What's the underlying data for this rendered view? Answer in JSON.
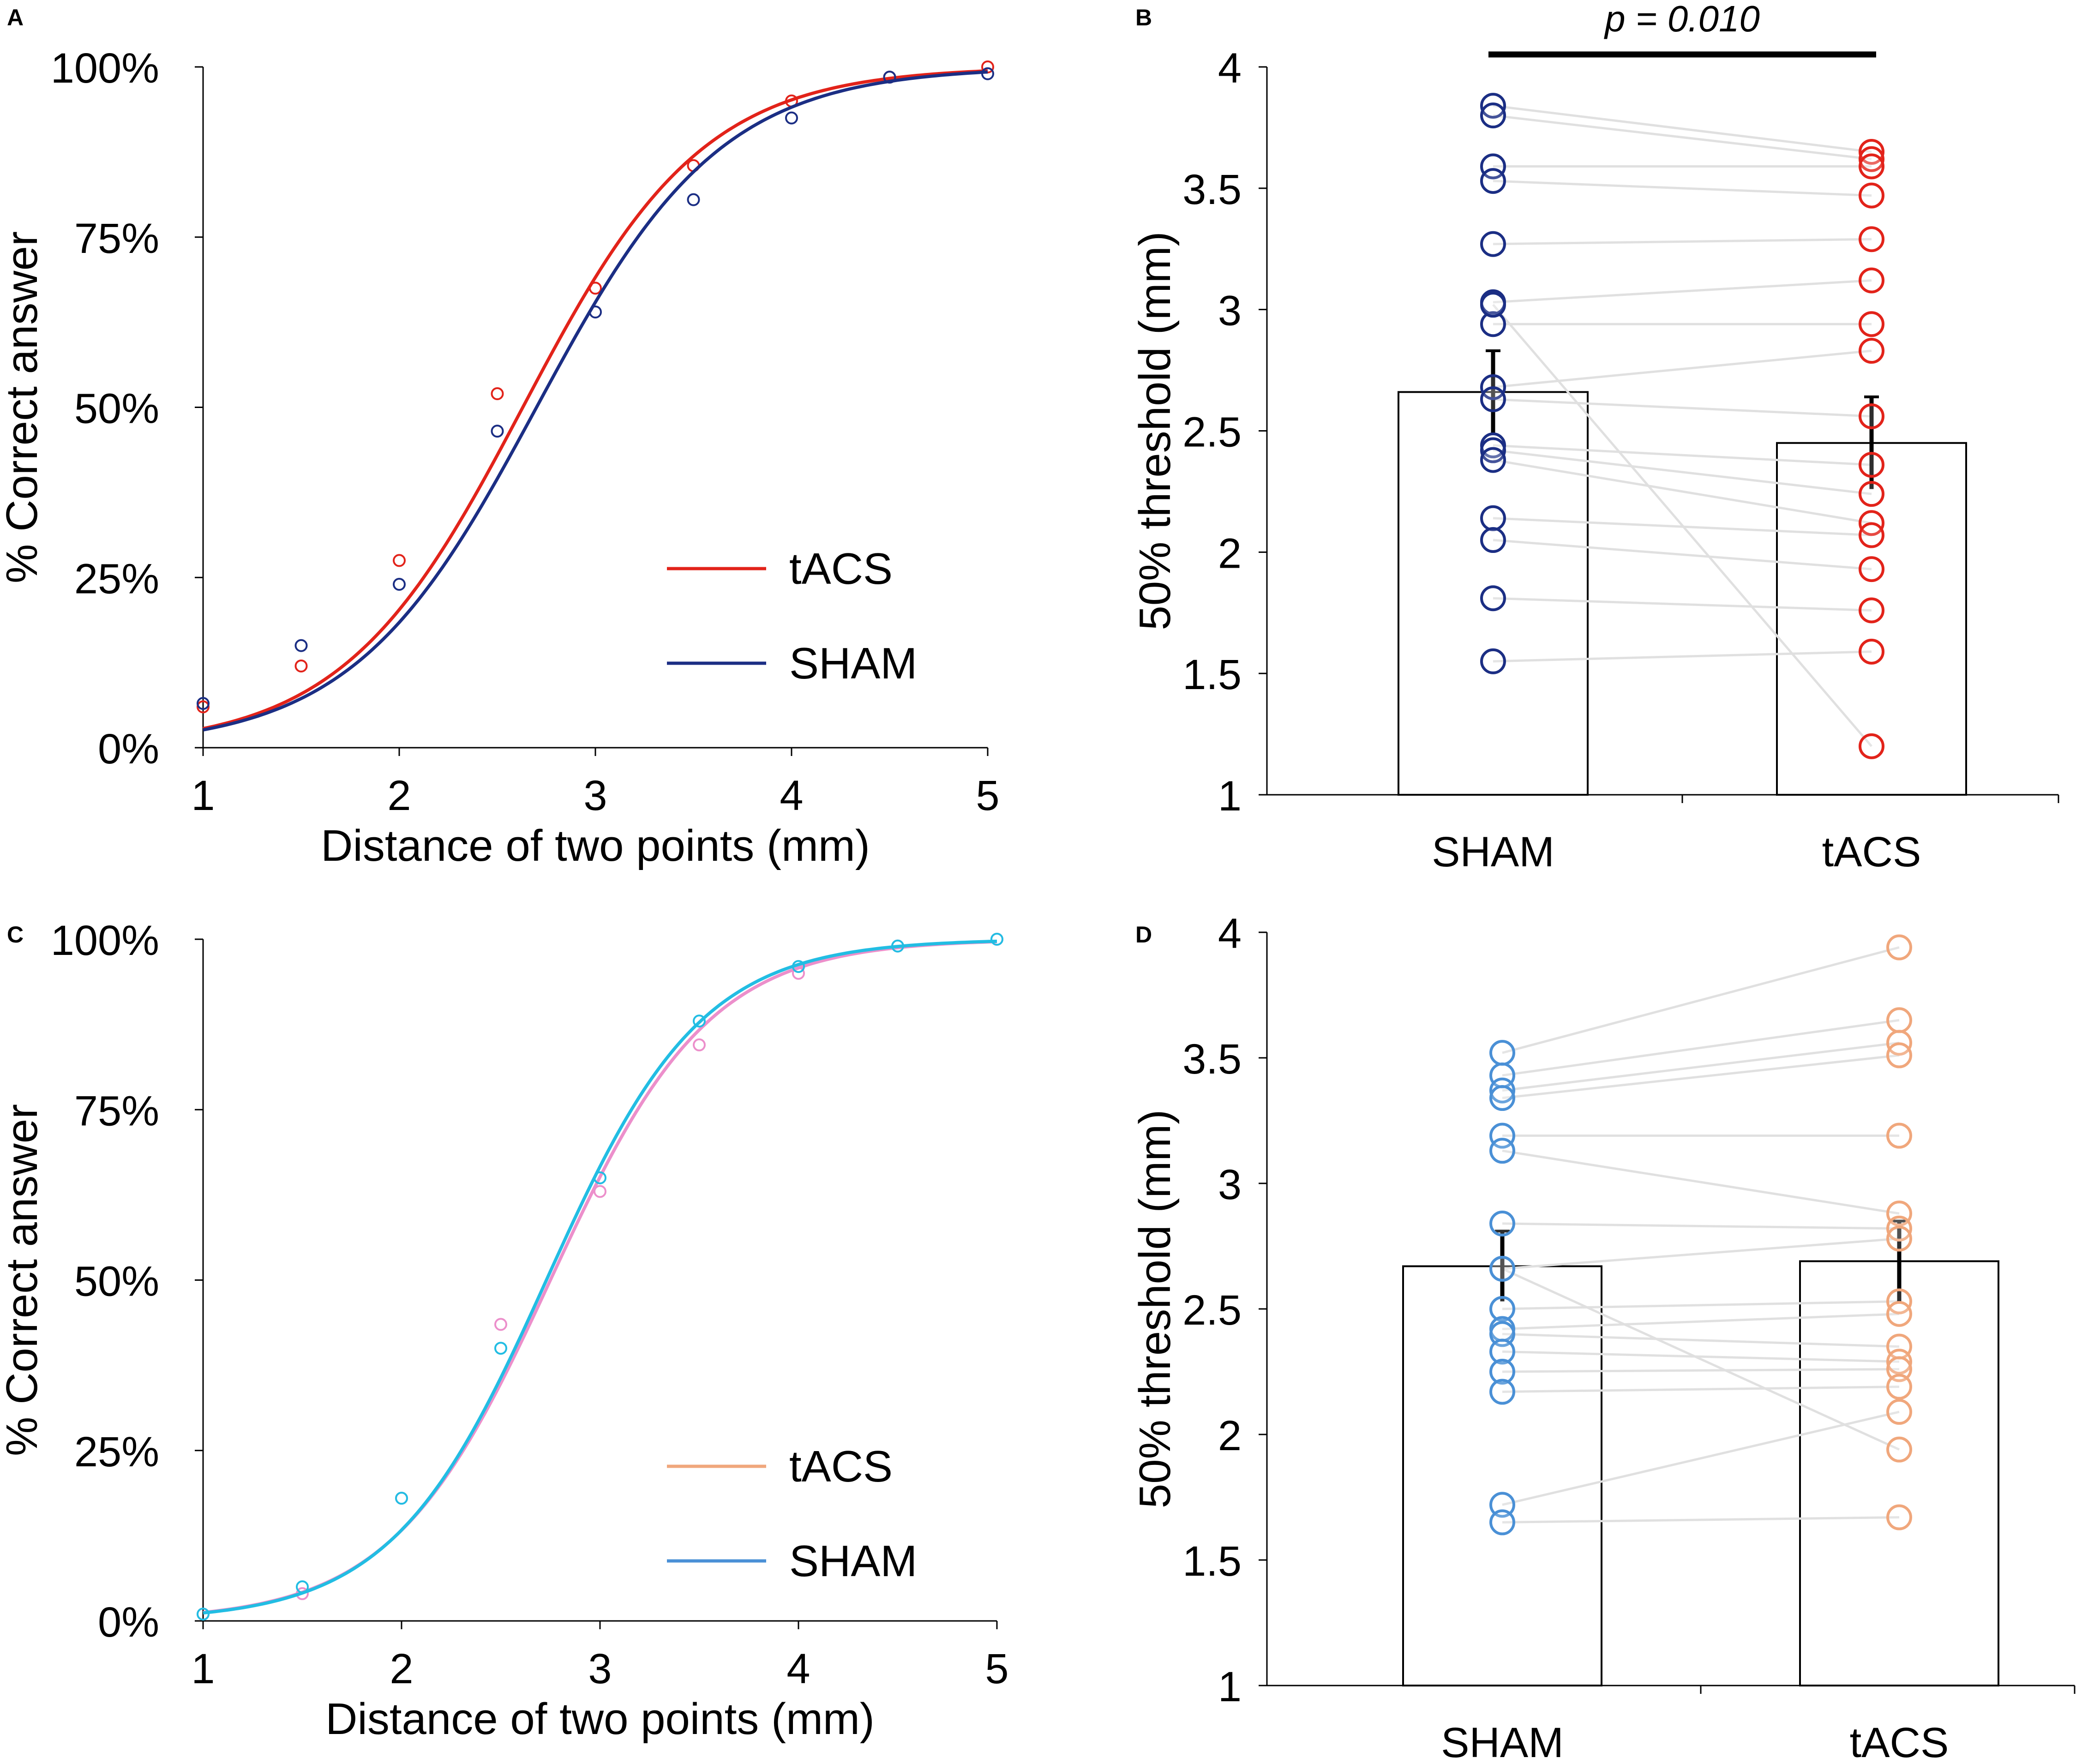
{
  "chart_data": [
    {
      "panel": "A",
      "type": "line",
      "title": "",
      "xlabel": "Distance of two points (mm)",
      "ylabel": "% Correct answer",
      "xlim": [
        1,
        5
      ],
      "ylim": [
        0,
        100
      ],
      "xticks": [
        1,
        2,
        3,
        4,
        5
      ],
      "yticks": [
        0,
        25,
        50,
        75,
        100
      ],
      "ytick_labels": [
        "0%",
        "25%",
        "50%",
        "75%",
        "100%"
      ],
      "legend_position": "bottom-right",
      "series": [
        {
          "name": "tACS",
          "color": "#e2231a",
          "fit": {
            "mu": 2.63,
            "s": 0.46
          },
          "points": [
            [
              1,
              6
            ],
            [
              1.5,
              12
            ],
            [
              2,
              27.5
            ],
            [
              2.5,
              52
            ],
            [
              3,
              67.5
            ],
            [
              3.5,
              85.5
            ],
            [
              4,
              95
            ],
            [
              4.5,
              98.5
            ],
            [
              5,
              100
            ]
          ]
        },
        {
          "name": "SHAM",
          "color": "#1b2e84",
          "fit": {
            "mu": 2.7,
            "s": 0.47
          },
          "points": [
            [
              1,
              6.5
            ],
            [
              1.5,
              15
            ],
            [
              2,
              24
            ],
            [
              2.5,
              46.5
            ],
            [
              3,
              64
            ],
            [
              3.5,
              80.5
            ],
            [
              4,
              92.5
            ],
            [
              4.5,
              98.5
            ],
            [
              5,
              99
            ]
          ]
        }
      ]
    },
    {
      "panel": "B",
      "type": "bar",
      "title": "",
      "xlabel": "",
      "ylabel": "50% threshold (mm)",
      "ylim": [
        1,
        4
      ],
      "yticks": [
        1,
        1.5,
        2,
        2.5,
        3,
        3.5,
        4
      ],
      "ytick_labels": [
        "1",
        "1.5",
        "2",
        "2.5",
        "3",
        "3.5",
        "4"
      ],
      "categories": [
        "SHAM",
        "tACS"
      ],
      "means": [
        2.66,
        2.45
      ],
      "errors": [
        0.17,
        0.19
      ],
      "dot_colors": [
        "#1b2e84",
        "#e2231a"
      ],
      "significance": {
        "label": "p = 0.010",
        "between": [
          "SHAM",
          "tACS"
        ]
      },
      "paired": [
        [
          3.84,
          3.65
        ],
        [
          3.8,
          3.62
        ],
        [
          3.59,
          3.59
        ],
        [
          3.53,
          3.47
        ],
        [
          3.27,
          3.29
        ],
        [
          3.03,
          3.12
        ],
        [
          2.94,
          2.94
        ],
        [
          2.68,
          2.83
        ],
        [
          2.63,
          2.56
        ],
        [
          2.44,
          2.36
        ],
        [
          2.42,
          2.24
        ],
        [
          2.38,
          2.12
        ],
        [
          2.14,
          2.07
        ],
        [
          2.05,
          1.93
        ],
        [
          1.81,
          1.76
        ],
        [
          1.55,
          1.59
        ],
        [
          3.02,
          1.2
        ]
      ]
    },
    {
      "panel": "C",
      "type": "line",
      "title": "",
      "xlabel": "Distance of two points (mm)",
      "ylabel": "% Correct answer",
      "xlim": [
        1,
        5
      ],
      "ylim": [
        0,
        100
      ],
      "xticks": [
        1,
        2,
        3,
        4,
        5
      ],
      "yticks": [
        0,
        25,
        50,
        75,
        100
      ],
      "ytick_labels": [
        "0%",
        "25%",
        "50%",
        "75%",
        "100%"
      ],
      "legend_position": "bottom-right",
      "series": [
        {
          "name": "tACS",
          "color": "#f0a77c",
          "line_color": "#ec8fcb",
          "fit": {
            "mu": 2.75,
            "s": 0.4
          },
          "points": [
            [
              1,
              1
            ],
            [
              1.5,
              4
            ],
            [
              2,
              18
            ],
            [
              2.5,
              43.5
            ],
            [
              3,
              63
            ],
            [
              3.5,
              84.5
            ],
            [
              4,
              95
            ],
            [
              4.5,
              99
            ],
            [
              5,
              100
            ]
          ]
        },
        {
          "name": "SHAM",
          "color": "#4a90d6",
          "line_color": "#22bde3",
          "fit": {
            "mu": 2.73,
            "s": 0.39
          },
          "points": [
            [
              1,
              1
            ],
            [
              1.5,
              5
            ],
            [
              2,
              18
            ],
            [
              2.5,
              40
            ],
            [
              3,
              65
            ],
            [
              3.5,
              88
            ],
            [
              4,
              96
            ],
            [
              4.5,
              99
            ],
            [
              5,
              100
            ]
          ]
        }
      ]
    },
    {
      "panel": "D",
      "type": "bar",
      "title": "",
      "xlabel": "",
      "ylabel": "50% threshold (mm)",
      "ylim": [
        1,
        4
      ],
      "yticks": [
        1,
        1.5,
        2,
        2.5,
        3,
        3.5,
        4
      ],
      "ytick_labels": [
        "1",
        "1.5",
        "2",
        "2.5",
        "3",
        "3.5",
        "4"
      ],
      "categories": [
        "SHAM",
        "tACS"
      ],
      "means": [
        2.67,
        2.69
      ],
      "errors": [
        0.14,
        0.16
      ],
      "dot_colors": [
        "#4a90d6",
        "#f0a77c"
      ],
      "paired": [
        [
          3.52,
          3.94
        ],
        [
          3.43,
          3.65
        ],
        [
          3.37,
          3.56
        ],
        [
          3.34,
          3.51
        ],
        [
          3.19,
          3.19
        ],
        [
          3.13,
          2.88
        ],
        [
          2.84,
          2.82
        ],
        [
          2.66,
          2.78
        ],
        [
          2.5,
          2.53
        ],
        [
          2.42,
          2.48
        ],
        [
          2.4,
          2.35
        ],
        [
          2.33,
          2.29
        ],
        [
          2.25,
          2.26
        ],
        [
          2.17,
          2.19
        ],
        [
          1.72,
          2.09
        ],
        [
          1.65,
          1.67
        ],
        [
          2.66,
          1.94
        ]
      ]
    }
  ]
}
